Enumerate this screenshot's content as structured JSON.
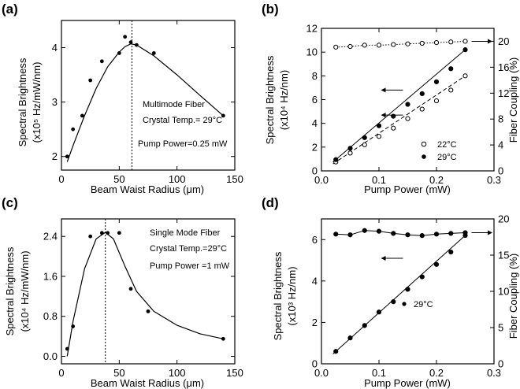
{
  "chart_data": [
    {
      "panel": "(a)",
      "type": "scatter",
      "xlabel": "Beam Waist Radius (μm)",
      "ylabel_line1": "Spectral Brightness",
      "ylabel_line2": "(x10⁵ Hz/mW/nm)",
      "xlim": [
        0,
        150
      ],
      "ylim": [
        1.75,
        4.5
      ],
      "xticks": [
        0,
        50,
        100,
        150
      ],
      "yticks": [
        2,
        3,
        4
      ],
      "points": {
        "x": [
          5,
          10,
          18,
          25,
          35,
          50,
          55,
          60,
          65,
          80,
          140
        ],
        "y": [
          2.0,
          2.5,
          2.75,
          3.4,
          3.75,
          3.9,
          4.2,
          4.1,
          4.05,
          3.9,
          2.75
        ]
      },
      "fit": {
        "x": [
          5,
          10,
          20,
          30,
          40,
          50,
          55,
          60,
          65,
          80,
          100,
          120,
          140
        ],
        "y": [
          1.9,
          2.2,
          2.75,
          3.25,
          3.65,
          3.92,
          4.02,
          4.07,
          4.05,
          3.85,
          3.5,
          3.12,
          2.75
        ]
      },
      "vline_x": 61,
      "annotations": [
        "Multimode Fiber",
        "Crystal Temp.= 29°C",
        "Pump Power=0.25 mW"
      ]
    },
    {
      "panel": "(b)",
      "type": "line",
      "xlabel": "Pump Power (mW)",
      "ylabel_line1": "Spectral Brightness",
      "ylabel_line2": "(x10⁴ Hz/nm)",
      "y2label": "Fiber Coupling (%)",
      "xlim": [
        0,
        0.3
      ],
      "ylim": [
        0,
        12
      ],
      "y2lim": [
        0,
        22
      ],
      "xticks": [
        0.0,
        0.1,
        0.2,
        0.3
      ],
      "yticks": [
        0,
        2,
        4,
        6,
        8,
        10,
        12
      ],
      "y2ticks": [
        0,
        4,
        8,
        12,
        16,
        20
      ],
      "series": [
        {
          "name": "22°C",
          "marker": "open",
          "x": [
            0.025,
            0.05,
            0.075,
            0.1,
            0.125,
            0.15,
            0.175,
            0.2,
            0.225,
            0.25
          ],
          "y": [
            0.75,
            1.5,
            2.2,
            2.9,
            3.6,
            4.4,
            5.2,
            5.9,
            6.8,
            8.0
          ]
        },
        {
          "name": "29°C",
          "marker": "filled",
          "x": [
            0.025,
            0.05,
            0.075,
            0.1,
            0.125,
            0.15,
            0.175,
            0.2,
            0.225,
            0.25
          ],
          "y": [
            0.95,
            1.9,
            2.8,
            3.8,
            4.6,
            5.6,
            6.5,
            7.5,
            8.6,
            10.2
          ]
        },
        {
          "name": "Fiber coupling",
          "marker": "open",
          "axis": "right",
          "x": [
            0.025,
            0.05,
            0.075,
            0.1,
            0.125,
            0.15,
            0.175,
            0.2,
            0.225,
            0.25
          ],
          "y": [
            19.1,
            19.2,
            19.4,
            19.4,
            19.5,
            19.6,
            19.7,
            19.8,
            19.9,
            20.0
          ]
        }
      ],
      "legend": [
        "22°C",
        "29°C"
      ]
    },
    {
      "panel": "(c)",
      "type": "scatter",
      "xlabel": "Beam Waist Radius (μm)",
      "ylabel_line1": "Spectral Brightness",
      "ylabel_line2": "(x10⁴ Hz/mW/nm)",
      "xlim": [
        0,
        150
      ],
      "ylim": [
        -0.15,
        2.75
      ],
      "xticks": [
        0,
        50,
        100,
        150
      ],
      "yticks": [
        0.0,
        0.8,
        1.6,
        2.4
      ],
      "points": {
        "x": [
          5,
          10,
          25,
          35,
          40,
          50,
          60,
          75,
          140
        ],
        "y": [
          0.15,
          0.6,
          2.4,
          2.47,
          2.47,
          2.47,
          1.35,
          0.9,
          0.35
        ]
      },
      "fit": {
        "x": [
          5,
          10,
          20,
          30,
          38,
          45,
          55,
          65,
          80,
          100,
          120,
          140
        ],
        "y": [
          0.0,
          0.7,
          1.75,
          2.35,
          2.48,
          2.35,
          1.8,
          1.3,
          0.9,
          0.62,
          0.45,
          0.35
        ]
      },
      "vline_x": 38,
      "annotations": [
        "Single Mode Fiber",
        "Crystal Temp.=29°C",
        "Pump Power =1 mW"
      ]
    },
    {
      "panel": "(d)",
      "type": "line",
      "xlabel": "Pump Power (mW)",
      "ylabel_line1": "Spectral Brightness",
      "ylabel_line2": "(x10³ Hz/nm)",
      "y2label": "Fiber Coupling (%)",
      "xlim": [
        0,
        0.3
      ],
      "ylim": [
        0,
        7
      ],
      "y2lim": [
        0,
        20
      ],
      "xticks": [
        0.0,
        0.1,
        0.2,
        0.3
      ],
      "yticks": [
        0,
        2,
        4,
        6
      ],
      "y2ticks": [
        0,
        5,
        10,
        15,
        20
      ],
      "series": [
        {
          "name": "29°C",
          "marker": "filled",
          "x": [
            0.025,
            0.05,
            0.075,
            0.1,
            0.125,
            0.15,
            0.175,
            0.2,
            0.225,
            0.25
          ],
          "y": [
            0.6,
            1.25,
            1.85,
            2.5,
            3.0,
            3.6,
            4.2,
            4.8,
            5.4,
            6.2
          ]
        },
        {
          "name": "Fiber coupling",
          "marker": "filled",
          "axis": "right",
          "x": [
            0.025,
            0.05,
            0.075,
            0.1,
            0.125,
            0.15,
            0.175,
            0.2,
            0.225,
            0.25
          ],
          "y": [
            17.9,
            17.8,
            18.4,
            18.3,
            18.0,
            17.8,
            17.7,
            17.9,
            18.0,
            18.1
          ]
        }
      ],
      "legend": [
        "29°C"
      ]
    }
  ]
}
